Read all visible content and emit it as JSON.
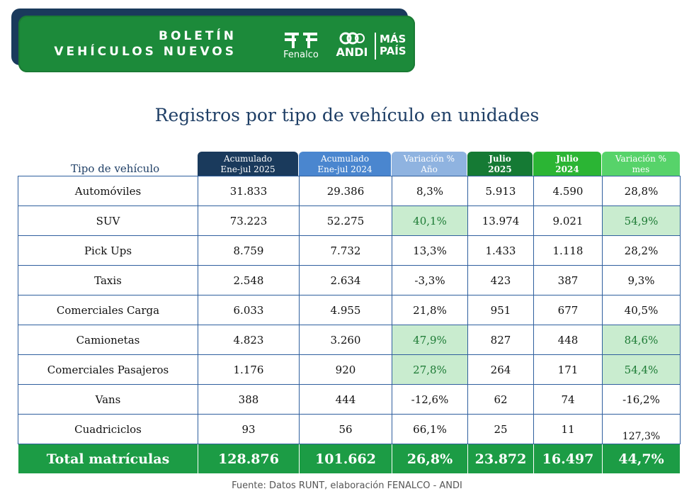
{
  "banner": {
    "title_line1": "BOLETÍN",
    "title_line2": "VEHÍCULOS NUEVOS",
    "logos": {
      "fenalco": "Fenalco",
      "andi": "ANDI",
      "maspais_line1": "MÁS",
      "maspais_line2": "PAÍS"
    }
  },
  "title": "Registros por tipo de vehículo en unidades",
  "table": {
    "row_header_label": "Tipo de vehículo",
    "columns": [
      {
        "line1": "Acumulado",
        "line2": "Ene-jul 2025",
        "color": "#1a3a5c"
      },
      {
        "line1": "Acumulado",
        "line2": "Ene-jul 2024",
        "color": "#4a86cf"
      },
      {
        "line1": "Variación %",
        "line2": "Año",
        "color": "#8fb3e0"
      },
      {
        "line1": "Julio",
        "line2": "2025",
        "color": "#157a34"
      },
      {
        "line1": "Julio",
        "line2": "2024",
        "color": "#2bb534"
      },
      {
        "line1": "Variación %",
        "line2": "mes",
        "color": "#57d36a"
      }
    ],
    "rows": [
      {
        "name": "Automóviles",
        "values": [
          "31.833",
          "29.386",
          "8,3%",
          "5.913",
          "4.590",
          "28,8%"
        ],
        "highlight": [
          false,
          false,
          false,
          false,
          false,
          false
        ]
      },
      {
        "name": "SUV",
        "values": [
          "73.223",
          "52.275",
          "40,1%",
          "13.974",
          "9.021",
          "54,9%"
        ],
        "highlight": [
          false,
          false,
          true,
          false,
          false,
          true
        ]
      },
      {
        "name": "Pick Ups",
        "values": [
          "8.759",
          "7.732",
          "13,3%",
          "1.433",
          "1.118",
          "28,2%"
        ],
        "highlight": [
          false,
          false,
          false,
          false,
          false,
          false
        ]
      },
      {
        "name": "Taxis",
        "values": [
          "2.548",
          "2.634",
          "-3,3%",
          "423",
          "387",
          "9,3%"
        ],
        "highlight": [
          false,
          false,
          false,
          false,
          false,
          false
        ]
      },
      {
        "name": "Comerciales Carga",
        "values": [
          "6.033",
          "4.955",
          "21,8%",
          "951",
          "677",
          "40,5%"
        ],
        "highlight": [
          false,
          false,
          false,
          false,
          false,
          false
        ]
      },
      {
        "name": "Camionetas",
        "values": [
          "4.823",
          "3.260",
          "47,9%",
          "827",
          "448",
          "84,6%"
        ],
        "highlight": [
          false,
          false,
          true,
          false,
          false,
          true
        ]
      },
      {
        "name": "Comerciales Pasajeros",
        "values": [
          "1.176",
          "920",
          "27,8%",
          "264",
          "171",
          "54,4%"
        ],
        "highlight": [
          false,
          false,
          true,
          false,
          false,
          true
        ]
      },
      {
        "name": "Vans",
        "values": [
          "388",
          "444",
          "-12,6%",
          "62",
          "74",
          "-16,2%"
        ],
        "highlight": [
          false,
          false,
          false,
          false,
          false,
          false
        ]
      },
      {
        "name": "Cuadriciclos",
        "values": [
          "93",
          "56",
          "66,1%",
          "25",
          "11",
          "127,3%"
        ],
        "highlight": [
          false,
          false,
          false,
          false,
          false,
          false
        ]
      }
    ],
    "total": {
      "name": "Total matrículas",
      "values": [
        "128.876",
        "101.662",
        "26,8%",
        "23.872",
        "16.497",
        "44,7%"
      ]
    }
  },
  "source": "Fuente: Datos RUNT, elaboración FENALCO - ANDI"
}
